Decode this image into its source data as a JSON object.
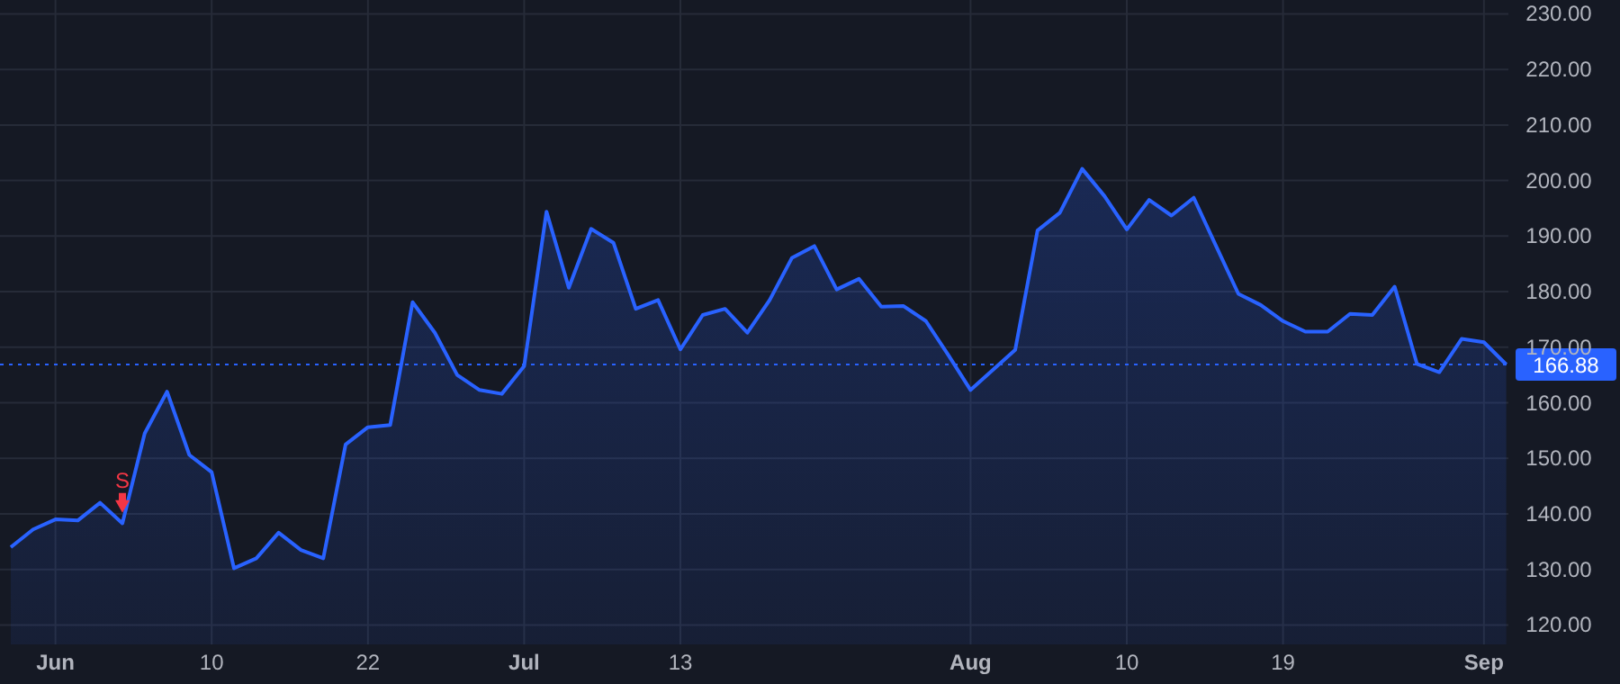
{
  "chart_data": {
    "type": "area",
    "categories": [
      null,
      null,
      "Jun",
      null,
      null,
      null,
      null,
      null,
      null,
      "10",
      null,
      null,
      null,
      null,
      null,
      null,
      "22",
      null,
      null,
      null,
      null,
      null,
      null,
      "Jul",
      null,
      null,
      null,
      null,
      null,
      null,
      "13",
      null,
      null,
      null,
      null,
      null,
      null,
      null,
      null,
      null,
      null,
      null,
      null,
      "Aug",
      null,
      null,
      null,
      null,
      null,
      null,
      "10",
      null,
      null,
      null,
      null,
      null,
      null,
      "19",
      null,
      null,
      null,
      null,
      null,
      null,
      null,
      null,
      "Sep",
      null
    ],
    "series": [
      {
        "color": "#2962ff",
        "values": [
          134.0,
          137.2,
          139.0,
          138.8,
          142.0,
          138.3,
          154.5,
          162.0,
          150.6,
          147.5,
          130.2,
          132.0,
          136.6,
          133.5,
          132.0,
          152.5,
          155.6,
          156.0,
          178.1,
          172.6,
          165.0,
          162.3,
          161.6,
          166.6,
          194.4,
          180.7,
          191.3,
          188.8,
          176.9,
          178.5,
          169.6,
          175.8,
          176.9,
          172.6,
          178.5,
          186.1,
          188.2,
          180.4,
          182.3,
          177.3,
          177.4,
          174.7,
          168.6,
          162.3,
          165.9,
          169.5,
          191.0,
          194.2,
          202.1,
          197.2,
          191.2,
          196.5,
          193.7,
          196.9,
          188.2,
          179.6,
          177.6,
          174.7,
          172.8,
          172.8,
          176.0,
          175.8,
          180.9,
          167.0,
          165.5,
          171.5,
          170.9,
          166.88
        ]
      },
      {
        "type": "scatter",
        "name": "S",
        "color": "#f23645",
        "marker": "triangle",
        "values": [
          null,
          null,
          null,
          null,
          null,
          141.5,
          null,
          null,
          null,
          null,
          null,
          null,
          null,
          null,
          null,
          null,
          null,
          null,
          null,
          null,
          null,
          null,
          null,
          null,
          null,
          null,
          null,
          null,
          null,
          null,
          null,
          null,
          null,
          null,
          null,
          null,
          null,
          null,
          null,
          null,
          null,
          null,
          null,
          null,
          null,
          null,
          null,
          null,
          null,
          null,
          null,
          null,
          null,
          null,
          null,
          null,
          null,
          null,
          null,
          null,
          null,
          null,
          null,
          null,
          null,
          null,
          null,
          null
        ]
      }
    ],
    "ylim": [
      116.5,
      232.5
    ],
    "yticks": [
      {
        "value": 120,
        "label": "120.00"
      },
      {
        "value": 130,
        "label": "130.00"
      },
      {
        "value": 140,
        "label": "140.00"
      },
      {
        "value": 150,
        "label": "150.00"
      },
      {
        "value": 160,
        "label": "160.00"
      },
      {
        "value": 170,
        "label": "170.00"
      },
      {
        "value": 180,
        "label": "180.00"
      },
      {
        "value": 190,
        "label": "190.00"
      },
      {
        "value": 200,
        "label": "200.00"
      },
      {
        "value": 210,
        "label": "210.00"
      },
      {
        "value": 220,
        "label": "220.00"
      },
      {
        "value": 230,
        "label": "230.00"
      }
    ],
    "ref_lines": [
      {
        "axis": "y",
        "value": 166.88,
        "label": "166.88",
        "color": "#2962ff",
        "line_style": "dotted"
      }
    ],
    "grid": true
  }
}
